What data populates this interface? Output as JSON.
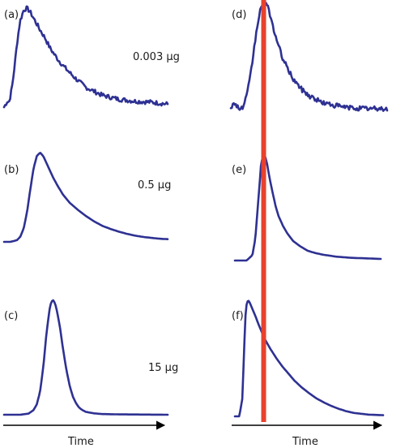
{
  "colors": {
    "trace": "#2e3192",
    "marker": "#e8412c",
    "axis": "#000000"
  },
  "chart_data": [
    {
      "panel_label": "(a)",
      "annotation": "0.003 μg",
      "type": "line",
      "x_label": "",
      "x": [
        0.0,
        0.1,
        0.2,
        0.3,
        0.4,
        0.5,
        0.6,
        0.7,
        0.8,
        0.9,
        1.0,
        1.2,
        1.4,
        1.6,
        1.8,
        2.0,
        2.2,
        2.5,
        2.8,
        3.0,
        3.3,
        3.6,
        4.0,
        4.5,
        5.0,
        5.5,
        6.0,
        6.5,
        7.0,
        7.5,
        8.0,
        9.0,
        10.0
      ],
      "y": [
        0.0,
        0.03,
        0.06,
        0.05,
        0.12,
        0.22,
        0.35,
        0.5,
        0.65,
        0.78,
        0.88,
        0.98,
        1.0,
        0.96,
        0.9,
        0.84,
        0.78,
        0.7,
        0.6,
        0.55,
        0.48,
        0.42,
        0.35,
        0.27,
        0.2,
        0.16,
        0.12,
        0.1,
        0.08,
        0.07,
        0.06,
        0.05,
        0.03
      ],
      "noisy": true
    },
    {
      "panel_label": "(b)",
      "annotation": "0.5 μg",
      "type": "line",
      "x_label": "",
      "x": [
        0.0,
        0.4,
        0.8,
        1.0,
        1.2,
        1.4,
        1.6,
        1.8,
        2.0,
        2.2,
        2.4,
        2.6,
        2.8,
        3.0,
        3.3,
        3.6,
        4.0,
        4.5,
        5.0,
        5.5,
        6.0,
        6.5,
        7.0,
        7.5,
        8.0,
        8.5,
        9.0,
        9.5,
        10.0
      ],
      "y": [
        0.0,
        0.0,
        0.02,
        0.06,
        0.15,
        0.33,
        0.58,
        0.82,
        0.96,
        1.0,
        0.96,
        0.88,
        0.8,
        0.72,
        0.62,
        0.53,
        0.44,
        0.36,
        0.29,
        0.23,
        0.18,
        0.145,
        0.115,
        0.09,
        0.07,
        0.055,
        0.045,
        0.035,
        0.03
      ],
      "noisy": false
    },
    {
      "panel_label": "(c)",
      "annotation": "15 μg",
      "type": "line",
      "x_label": "Time",
      "x": [
        0.0,
        1.0,
        1.5,
        1.8,
        2.0,
        2.2,
        2.4,
        2.6,
        2.8,
        2.9,
        3.0,
        3.1,
        3.2,
        3.4,
        3.6,
        3.8,
        4.0,
        4.2,
        4.4,
        4.6,
        4.8,
        5.0,
        5.5,
        6.0,
        7.0,
        8.0,
        9.0,
        10.0
      ],
      "y": [
        0.0,
        0.0,
        0.01,
        0.04,
        0.09,
        0.2,
        0.42,
        0.72,
        0.94,
        0.99,
        1.0,
        0.98,
        0.93,
        0.78,
        0.58,
        0.4,
        0.26,
        0.16,
        0.1,
        0.06,
        0.04,
        0.025,
        0.012,
        0.006,
        0.003,
        0.002,
        0.001,
        0.0
      ],
      "noisy": false
    },
    {
      "panel_label": "(d)",
      "annotation": "",
      "type": "line",
      "x_label": "",
      "x": [
        0.0,
        0.3,
        0.6,
        0.8,
        1.0,
        1.2,
        1.4,
        1.6,
        1.8,
        2.0,
        2.2,
        2.4,
        2.6,
        2.8,
        3.0,
        3.3,
        3.6,
        4.0,
        4.5,
        5.0,
        5.5,
        6.0,
        6.5,
        7.0,
        7.5,
        8.0,
        9.0,
        10.0
      ],
      "y": [
        0.05,
        0.08,
        0.02,
        0.05,
        0.14,
        0.28,
        0.48,
        0.7,
        0.88,
        0.98,
        1.0,
        0.94,
        0.84,
        0.72,
        0.62,
        0.5,
        0.4,
        0.3,
        0.21,
        0.15,
        0.11,
        0.08,
        0.065,
        0.05,
        0.04,
        0.035,
        0.03,
        0.03
      ],
      "noisy": true
    },
    {
      "panel_label": "(e)",
      "annotation": "",
      "type": "line",
      "x_label": "",
      "x": [
        0.0,
        0.8,
        1.2,
        1.4,
        1.6,
        1.8,
        2.0,
        2.2,
        2.4,
        2.6,
        2.8,
        3.0,
        3.3,
        3.6,
        4.0,
        4.5,
        5.0,
        5.5,
        6.0,
        6.5,
        7.0,
        8.0,
        9.0,
        10.0
      ],
      "y": [
        0.0,
        0.0,
        0.05,
        0.2,
        0.55,
        0.9,
        1.0,
        0.9,
        0.75,
        0.62,
        0.5,
        0.41,
        0.32,
        0.25,
        0.18,
        0.13,
        0.09,
        0.07,
        0.055,
        0.045,
        0.035,
        0.025,
        0.02,
        0.015
      ],
      "noisy": false
    },
    {
      "panel_label": "(f)",
      "annotation": "",
      "type": "line",
      "x_label": "Time",
      "x": [
        0.0,
        0.3,
        0.5,
        0.6,
        0.7,
        0.8,
        0.9,
        1.0,
        1.2,
        1.4,
        1.6,
        1.8,
        2.0,
        2.4,
        2.8,
        3.2,
        3.6,
        4.0,
        4.5,
        5.0,
        5.5,
        6.0,
        6.5,
        7.0,
        7.5,
        8.0,
        9.0,
        10.0
      ],
      "y": [
        0.0,
        0.0,
        0.15,
        0.5,
        0.85,
        0.98,
        1.0,
        0.98,
        0.92,
        0.86,
        0.79,
        0.73,
        0.67,
        0.58,
        0.5,
        0.43,
        0.37,
        0.31,
        0.25,
        0.2,
        0.155,
        0.12,
        0.09,
        0.065,
        0.045,
        0.03,
        0.015,
        0.01
      ],
      "noisy": false
    }
  ],
  "marker_line": {
    "x": 2.1,
    "spans_panels": [
      "(d)",
      "(e)",
      "(f)"
    ]
  }
}
